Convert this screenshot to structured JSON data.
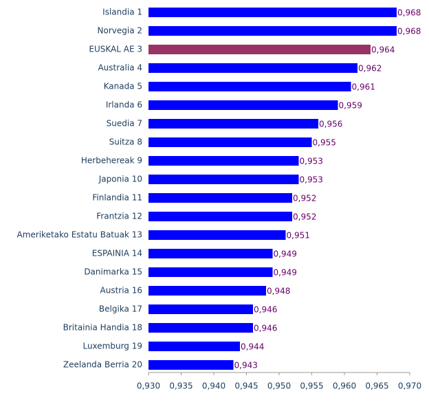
{
  "chart_data": {
    "type": "bar",
    "orientation": "horizontal",
    "categories": [
      "Islandia 1",
      "Norvegia 2",
      "EUSKAL AE 3",
      "Australia 4",
      "Kanada 5",
      "Irlanda 6",
      "Suedia 7",
      "Suitza 8",
      "Herbehereak 9",
      "Japonia 10",
      "Finlandia 11",
      "Frantzia 12",
      "Ameriketako Estatu Batuak 13",
      "ESPAINIA 14",
      "Danimarka 15",
      "Austria 16",
      "Belgika 17",
      "Britainia Handia 18",
      "Luxemburg 19",
      "Zeelanda Berria 20"
    ],
    "values": [
      0.968,
      0.968,
      0.964,
      0.962,
      0.961,
      0.959,
      0.956,
      0.955,
      0.953,
      0.953,
      0.952,
      0.952,
      0.951,
      0.949,
      0.949,
      0.948,
      0.946,
      0.946,
      0.944,
      0.943
    ],
    "value_labels": [
      "0,968",
      "0,968",
      "0,964",
      "0,962",
      "0,961",
      "0,959",
      "0,956",
      "0,955",
      "0,953",
      "0,953",
      "0,952",
      "0,952",
      "0,951",
      "0,949",
      "0,949",
      "0,948",
      "0,946",
      "0,946",
      "0,944",
      "0,943"
    ],
    "colors": [
      "#0000ff",
      "#0000ff",
      "#993366",
      "#0000ff",
      "#0000ff",
      "#0000ff",
      "#0000ff",
      "#0000ff",
      "#0000ff",
      "#0000ff",
      "#0000ff",
      "#0000ff",
      "#0000ff",
      "#0000ff",
      "#0000ff",
      "#0000ff",
      "#0000ff",
      "#0000ff",
      "#0000ff",
      "#0000ff"
    ],
    "xlim": [
      0.93,
      0.97
    ],
    "xticks": [
      {
        "value": 0.93,
        "label": "0,930"
      },
      {
        "value": 0.935,
        "label": "0,935"
      },
      {
        "value": 0.94,
        "label": "0,940"
      },
      {
        "value": 0.945,
        "label": "0,945"
      },
      {
        "value": 0.95,
        "label": "0,950"
      },
      {
        "value": 0.955,
        "label": "0,955"
      },
      {
        "value": 0.96,
        "label": "0,960"
      },
      {
        "value": 0.965,
        "label": "0,965"
      },
      {
        "value": 0.97,
        "label": "0,970"
      }
    ],
    "grid": false
  }
}
